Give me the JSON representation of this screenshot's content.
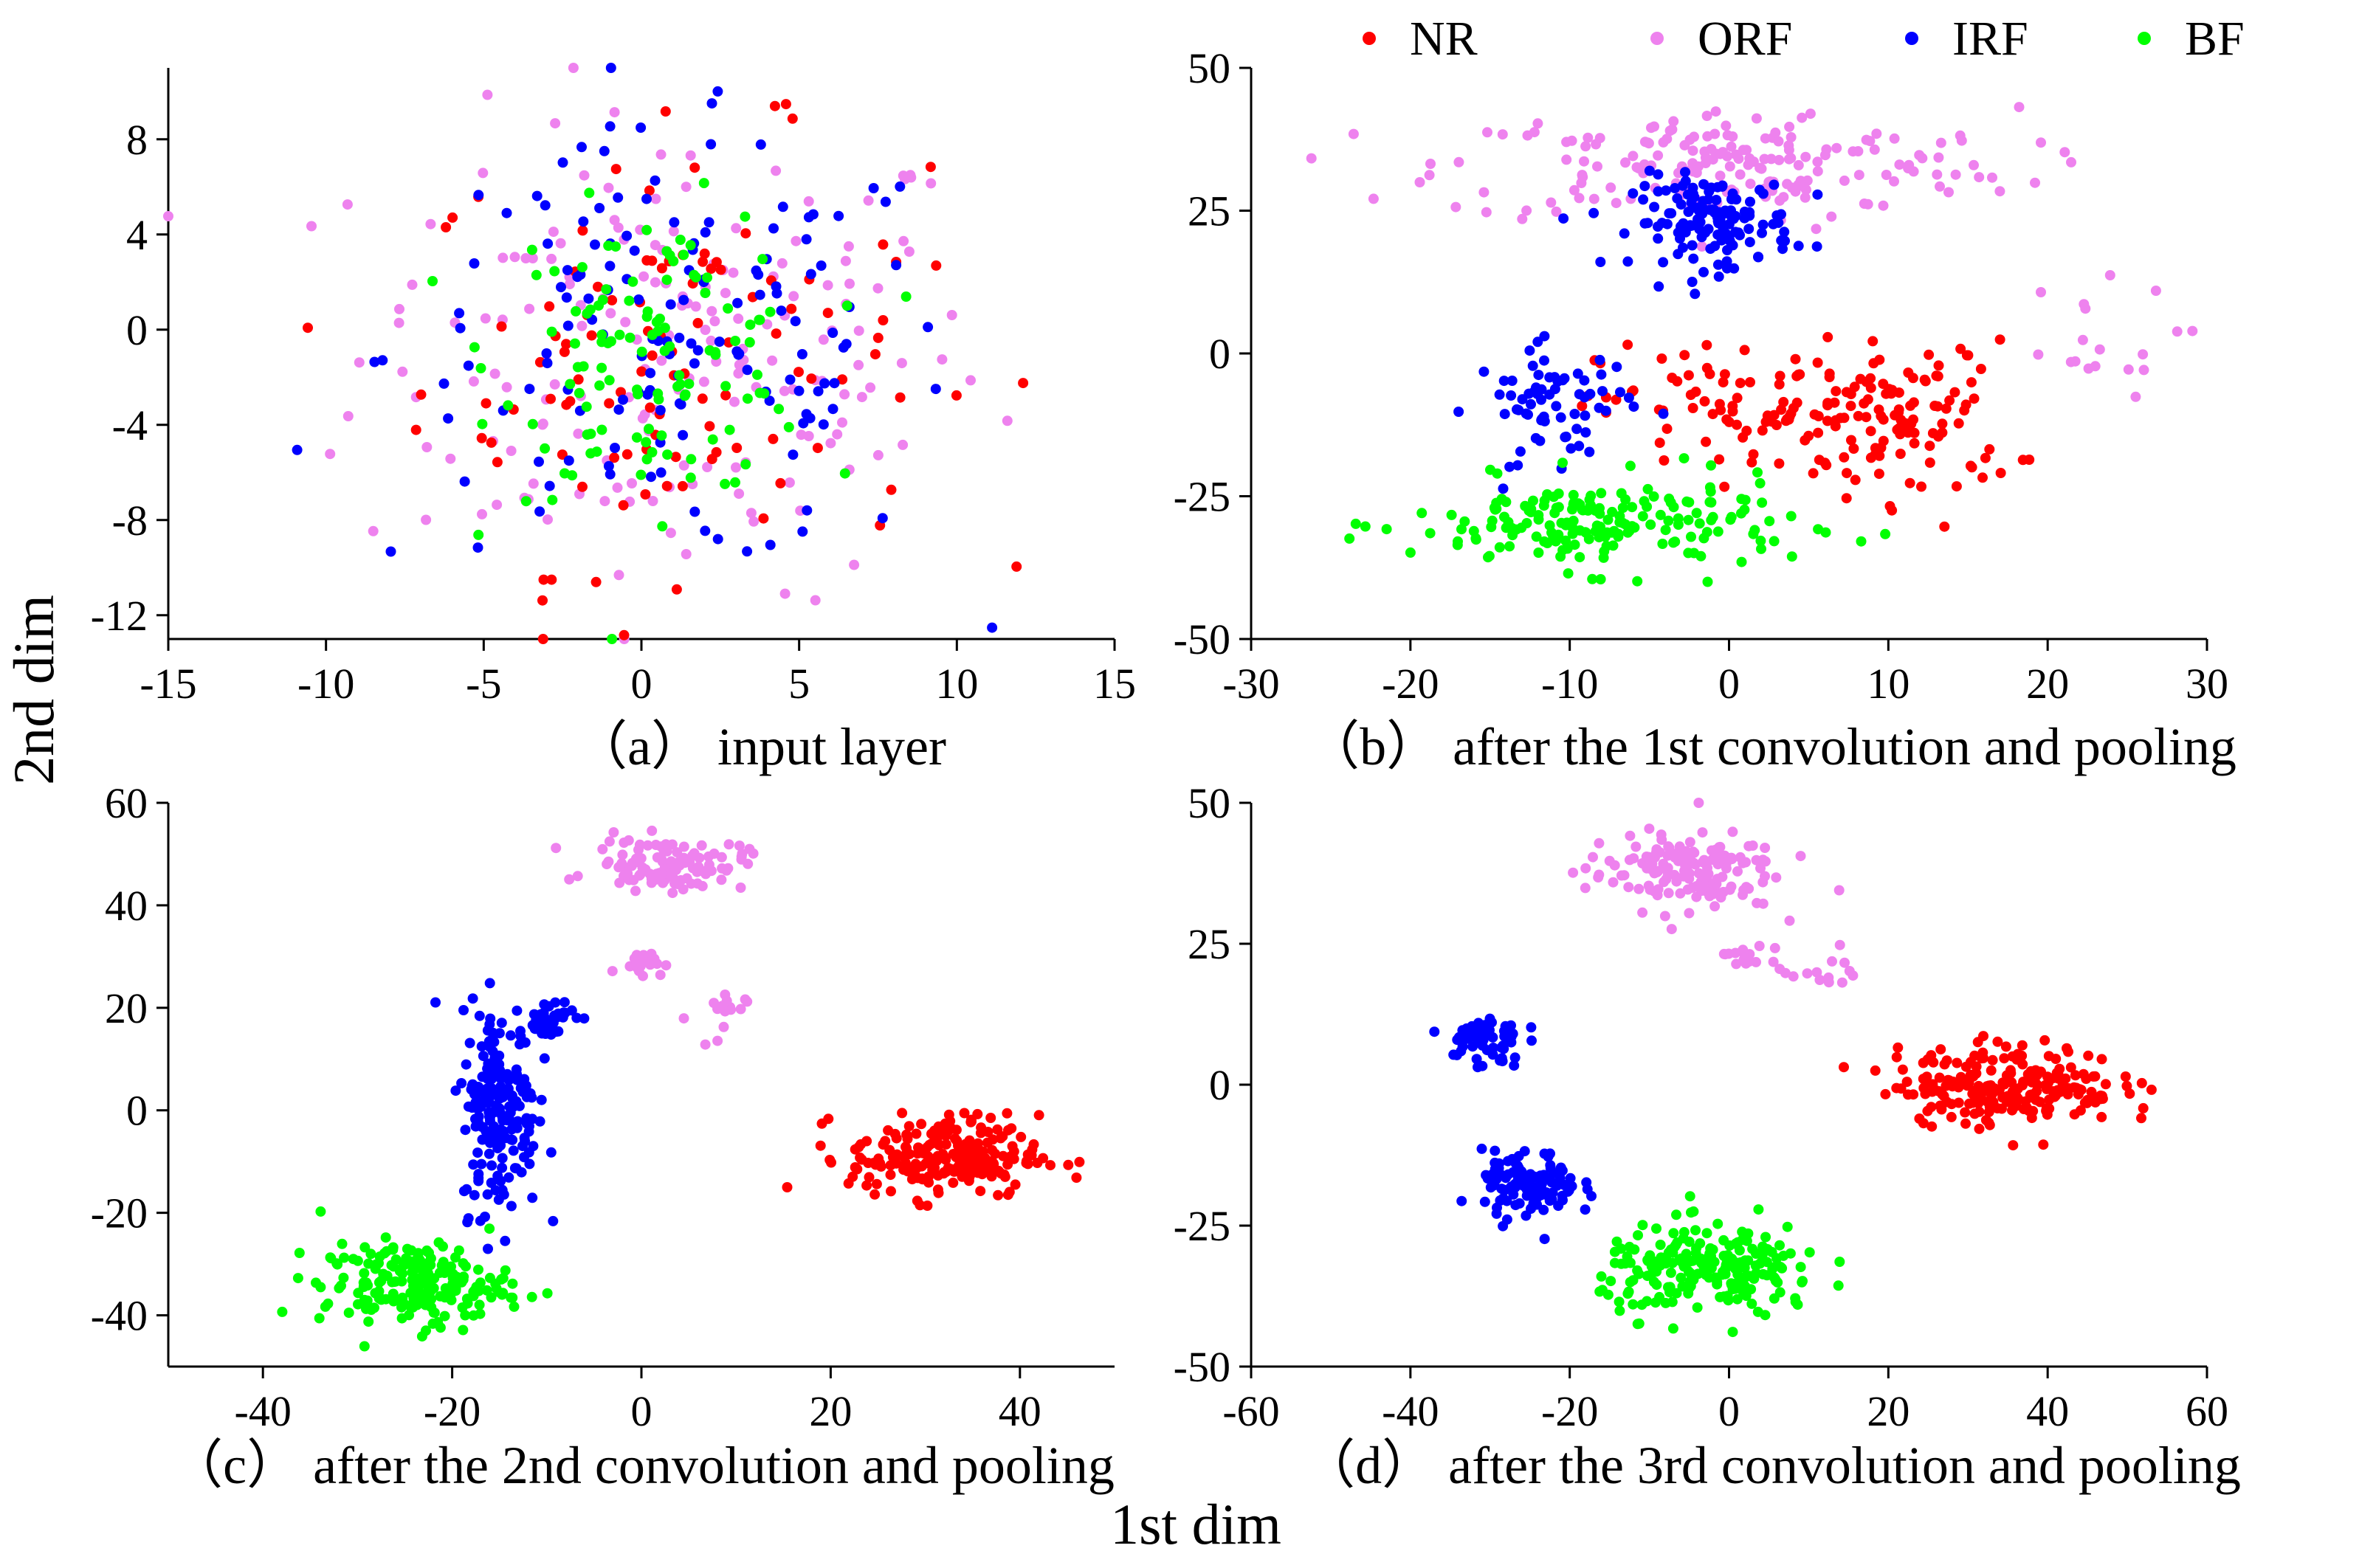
{
  "figure": {
    "ylabel": "2nd dim",
    "xlabel": "1st dim",
    "legend": [
      {
        "name": "NR",
        "color": "#ff0000"
      },
      {
        "name": "ORF",
        "color": "#ee82ee"
      },
      {
        "name": "IRF",
        "color": "#0000ff"
      },
      {
        "name": "BF",
        "color": "#00ff00"
      }
    ]
  },
  "chart_data": [
    {
      "type": "scatter",
      "title": "（a） input layer",
      "xlabel": "1st dim",
      "ylabel": "2nd dim",
      "xlim": [
        -15,
        15
      ],
      "ylim": [
        -13,
        11
      ],
      "xticks": [
        -15,
        -10,
        -5,
        0,
        5,
        10,
        15
      ],
      "yticks": [
        -12,
        -8,
        -4,
        0,
        4,
        8
      ],
      "series": [
        {
          "name": "NR",
          "clusters": [
            {
              "center": [
                1,
                -1
              ],
              "spread": [
                4,
                4.5
              ],
              "count": 110
            }
          ]
        },
        {
          "name": "ORF",
          "clusters": [
            {
              "center": [
                1,
                -1
              ],
              "spread": [
                5,
                5
              ],
              "count": 180
            }
          ]
        },
        {
          "name": "IRF",
          "clusters": [
            {
              "center": [
                1,
                -1
              ],
              "spread": [
                4.5,
                4.5
              ],
              "count": 150
            }
          ]
        },
        {
          "name": "BF",
          "clusters": [
            {
              "center": [
                0.5,
                -1
              ],
              "spread": [
                2.5,
                3
              ],
              "count": 120
            }
          ]
        }
      ]
    },
    {
      "type": "scatter",
      "title": "（b） after the 1st convolution and pooling",
      "xlabel": "1st dim",
      "ylabel": "2nd dim",
      "xlim": [
        -30,
        30
      ],
      "ylim": [
        -50,
        50
      ],
      "xticks": [
        -30,
        -20,
        -10,
        0,
        10,
        20,
        30
      ],
      "yticks": [
        -50,
        -25,
        0,
        25,
        50
      ],
      "series": [
        {
          "name": "NR",
          "clusters": [
            {
              "center": [
                2,
                -10
              ],
              "spread": [
                5,
                6
              ],
              "count": 110
            },
            {
              "center": [
                12,
                -12
              ],
              "spread": [
                3,
                7
              ],
              "count": 80
            }
          ]
        },
        {
          "name": "ORF",
          "clusters": [
            {
              "center": [
                0,
                33
              ],
              "spread": [
                9,
                5
              ],
              "count": 190
            },
            {
              "center": [
                22,
                2
              ],
              "spread": [
                3,
                5
              ],
              "count": 18
            }
          ]
        },
        {
          "name": "IRF",
          "clusters": [
            {
              "center": [
                -1,
                23
              ],
              "spread": [
                2.5,
                4
              ],
              "count": 140
            },
            {
              "center": [
                -11,
                -9
              ],
              "spread": [
                2.5,
                5
              ],
              "count": 70
            }
          ]
        },
        {
          "name": "BF",
          "clusters": [
            {
              "center": [
                -8,
                -30
              ],
              "spread": [
                6,
                4
              ],
              "count": 190
            }
          ]
        }
      ]
    },
    {
      "type": "scatter",
      "title": "（c） after the 2nd convolution and pooling",
      "xlabel": "1st dim",
      "ylabel": "2nd dim",
      "xlim": [
        -50,
        50
      ],
      "ylim": [
        -50,
        60
      ],
      "xticks": [
        -40,
        -20,
        0,
        20,
        40
      ],
      "yticks": [
        -40,
        -20,
        0,
        20,
        40,
        60
      ],
      "series": [
        {
          "name": "NR",
          "clusters": [
            {
              "center": [
                32,
                -9
              ],
              "spread": [
                5,
                4
              ],
              "count": 230
            }
          ]
        },
        {
          "name": "ORF",
          "clusters": [
            {
              "center": [
                3,
                48
              ],
              "spread": [
                4,
                2.5
              ],
              "count": 110
            },
            {
              "center": [
                0,
                29
              ],
              "spread": [
                1.2,
                1.2
              ],
              "count": 20
            },
            {
              "center": [
                8,
                18
              ],
              "spread": [
                1.5,
                3
              ],
              "count": 15
            }
          ]
        },
        {
          "name": "IRF",
          "clusters": [
            {
              "center": [
                -15,
                0
              ],
              "spread": [
                2,
                10
              ],
              "count": 190
            },
            {
              "center": [
                -10,
                18
              ],
              "spread": [
                1.5,
                2
              ],
              "count": 40
            }
          ]
        },
        {
          "name": "BF",
          "clusters": [
            {
              "center": [
                -24,
                -34
              ],
              "spread": [
                5,
                4
              ],
              "count": 200
            }
          ]
        }
      ]
    },
    {
      "type": "scatter",
      "title": "（d） after the 3rd convolution and pooling",
      "xlabel": "1st dim",
      "ylabel": "2nd dim",
      "xlim": [
        -60,
        60
      ],
      "ylim": [
        -50,
        50
      ],
      "xticks": [
        -60,
        -40,
        -20,
        0,
        20,
        40,
        60
      ],
      "yticks": [
        -50,
        -25,
        0,
        25,
        50
      ],
      "series": [
        {
          "name": "NR",
          "clusters": [
            {
              "center": [
                35,
                0
              ],
              "spread": [
                7,
                3.5
              ],
              "count": 230
            }
          ]
        },
        {
          "name": "ORF",
          "clusters": [
            {
              "center": [
                -6,
                38
              ],
              "spread": [
                6,
                3.5
              ],
              "count": 150
            },
            {
              "center": [
                2,
                23
              ],
              "spread": [
                1.5,
                1.5
              ],
              "count": 15
            },
            {
              "center": [
                12,
                20
              ],
              "spread": [
                3,
                2
              ],
              "count": 15
            }
          ]
        },
        {
          "name": "IRF",
          "clusters": [
            {
              "center": [
                -31,
                8
              ],
              "spread": [
                2.5,
                2.5
              ],
              "count": 60
            },
            {
              "center": [
                -25,
                -18
              ],
              "spread": [
                3,
                3
              ],
              "count": 110
            }
          ]
        },
        {
          "name": "BF",
          "clusters": [
            {
              "center": [
                -2,
                -33
              ],
              "spread": [
                7,
                4
              ],
              "count": 220
            }
          ]
        }
      ]
    }
  ]
}
